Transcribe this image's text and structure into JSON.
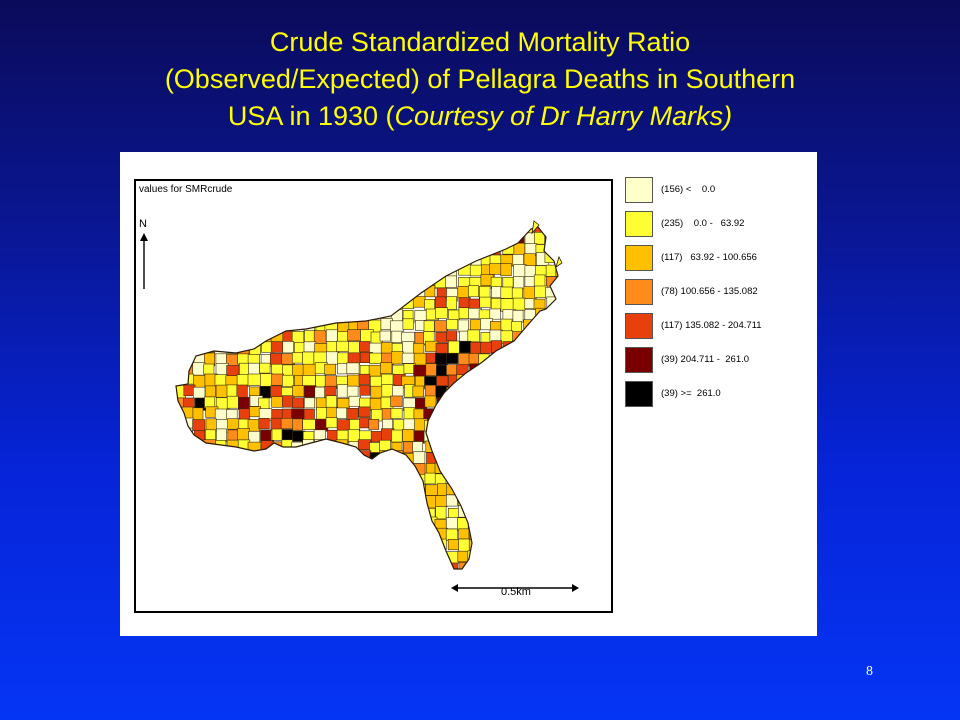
{
  "slide": {
    "title_lines": [
      "Crude Standardized Mortality Ratio",
      "(Observed/Expected) of Pellagra Deaths in Southern",
      "USA in 1930 ("
    ],
    "title_italic": "Courtesy of  Dr Harry Marks)",
    "page_number": "8"
  },
  "map": {
    "caption": "values for SMRcrude",
    "north_label": "N",
    "scale_label": "0.5km",
    "colors": {
      "background": "#ffffff",
      "county_border": "#3a2a10",
      "region_outline": "#2a1a08"
    },
    "legend": [
      {
        "label": "(156) <    0.0",
        "color": "#ffffcc"
      },
      {
        "label": "(235)    0.0 -   63.92",
        "color": "#ffff33"
      },
      {
        "label": "(117)   63.92 - 100.656",
        "color": "#ffc000"
      },
      {
        "label": "(78) 100.656 - 135.082",
        "color": "#ff8c1a"
      },
      {
        "label": "(117) 135.082 - 204.711",
        "color": "#e8400c"
      },
      {
        "label": "(39) 204.711 -  261.0",
        "color": "#7a0000"
      },
      {
        "label": "(39) >=  261.0",
        "color": "#000000"
      }
    ]
  }
}
